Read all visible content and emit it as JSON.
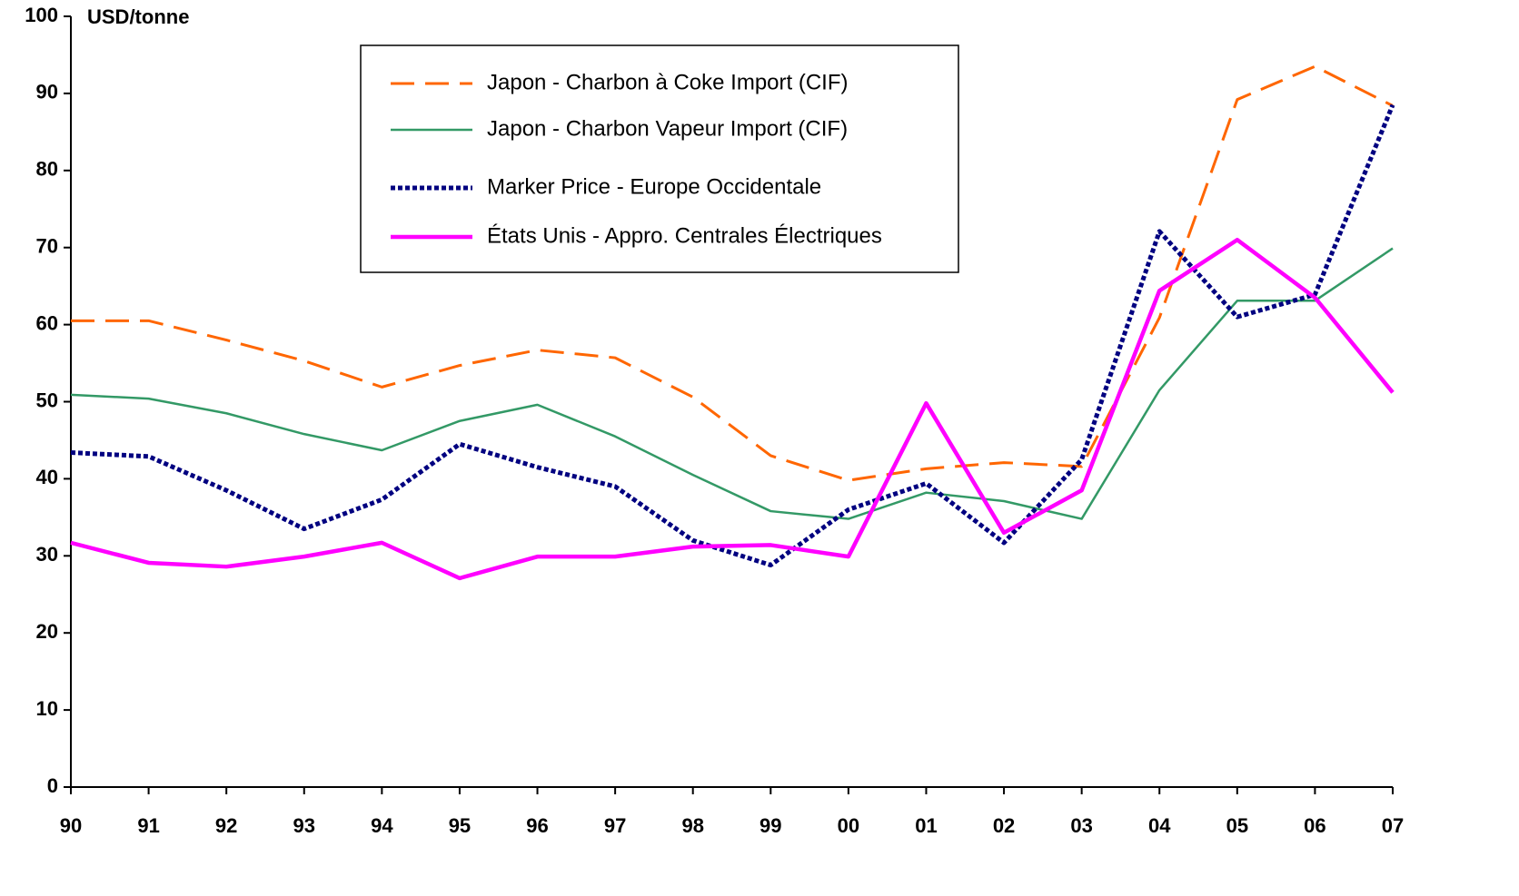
{
  "chart_data": {
    "type": "line",
    "y_axis_label": "USD/tonne",
    "categories": [
      "90",
      "91",
      "92",
      "93",
      "94",
      "95",
      "96",
      "97",
      "98",
      "99",
      "00",
      "01",
      "02",
      "03",
      "04",
      "05",
      "06",
      "07"
    ],
    "series": [
      {
        "name": "Japon - Charbon à Coke Import (CIF)",
        "color": "#ff6600",
        "style": "dashed",
        "values": [
          60.5,
          60.5,
          58,
          55.3,
          51.9,
          54.7,
          56.7,
          55.7,
          50.6,
          43,
          39.8,
          41.3,
          42.1,
          41.6,
          60.9,
          89.2,
          93.5,
          88.4
        ]
      },
      {
        "name": "Japon - Charbon Vapeur Import (CIF)",
        "color": "#339966",
        "style": "solid",
        "values": [
          50.9,
          50.4,
          48.5,
          45.8,
          43.7,
          47.5,
          49.6,
          45.5,
          40.5,
          35.8,
          34.8,
          38.2,
          37.1,
          34.8,
          51.5,
          63.1,
          63.1,
          69.9
        ]
      },
      {
        "name": "Marker Price - Europe Occidentale",
        "color": "#000080",
        "style": "dotted",
        "values": [
          43.4,
          42.9,
          38.5,
          33.5,
          37.3,
          44.5,
          41.5,
          39,
          32,
          28.8,
          36,
          39.4,
          31.7,
          42.5,
          72.1,
          61,
          63.9,
          88.5
        ]
      },
      {
        "name": "États Unis - Appro. Centrales Électriques",
        "color": "#ff00ff",
        "style": "thick",
        "values": [
          31.7,
          29.1,
          28.6,
          29.9,
          31.7,
          27.1,
          29.9,
          29.9,
          31.2,
          31.4,
          29.9,
          49.8,
          33,
          38.5,
          64.4,
          71,
          63.5,
          51.2
        ]
      }
    ],
    "ylim": [
      0,
      100
    ],
    "yticks": [
      0,
      10,
      20,
      30,
      40,
      50,
      60,
      70,
      80,
      90,
      100
    ]
  }
}
